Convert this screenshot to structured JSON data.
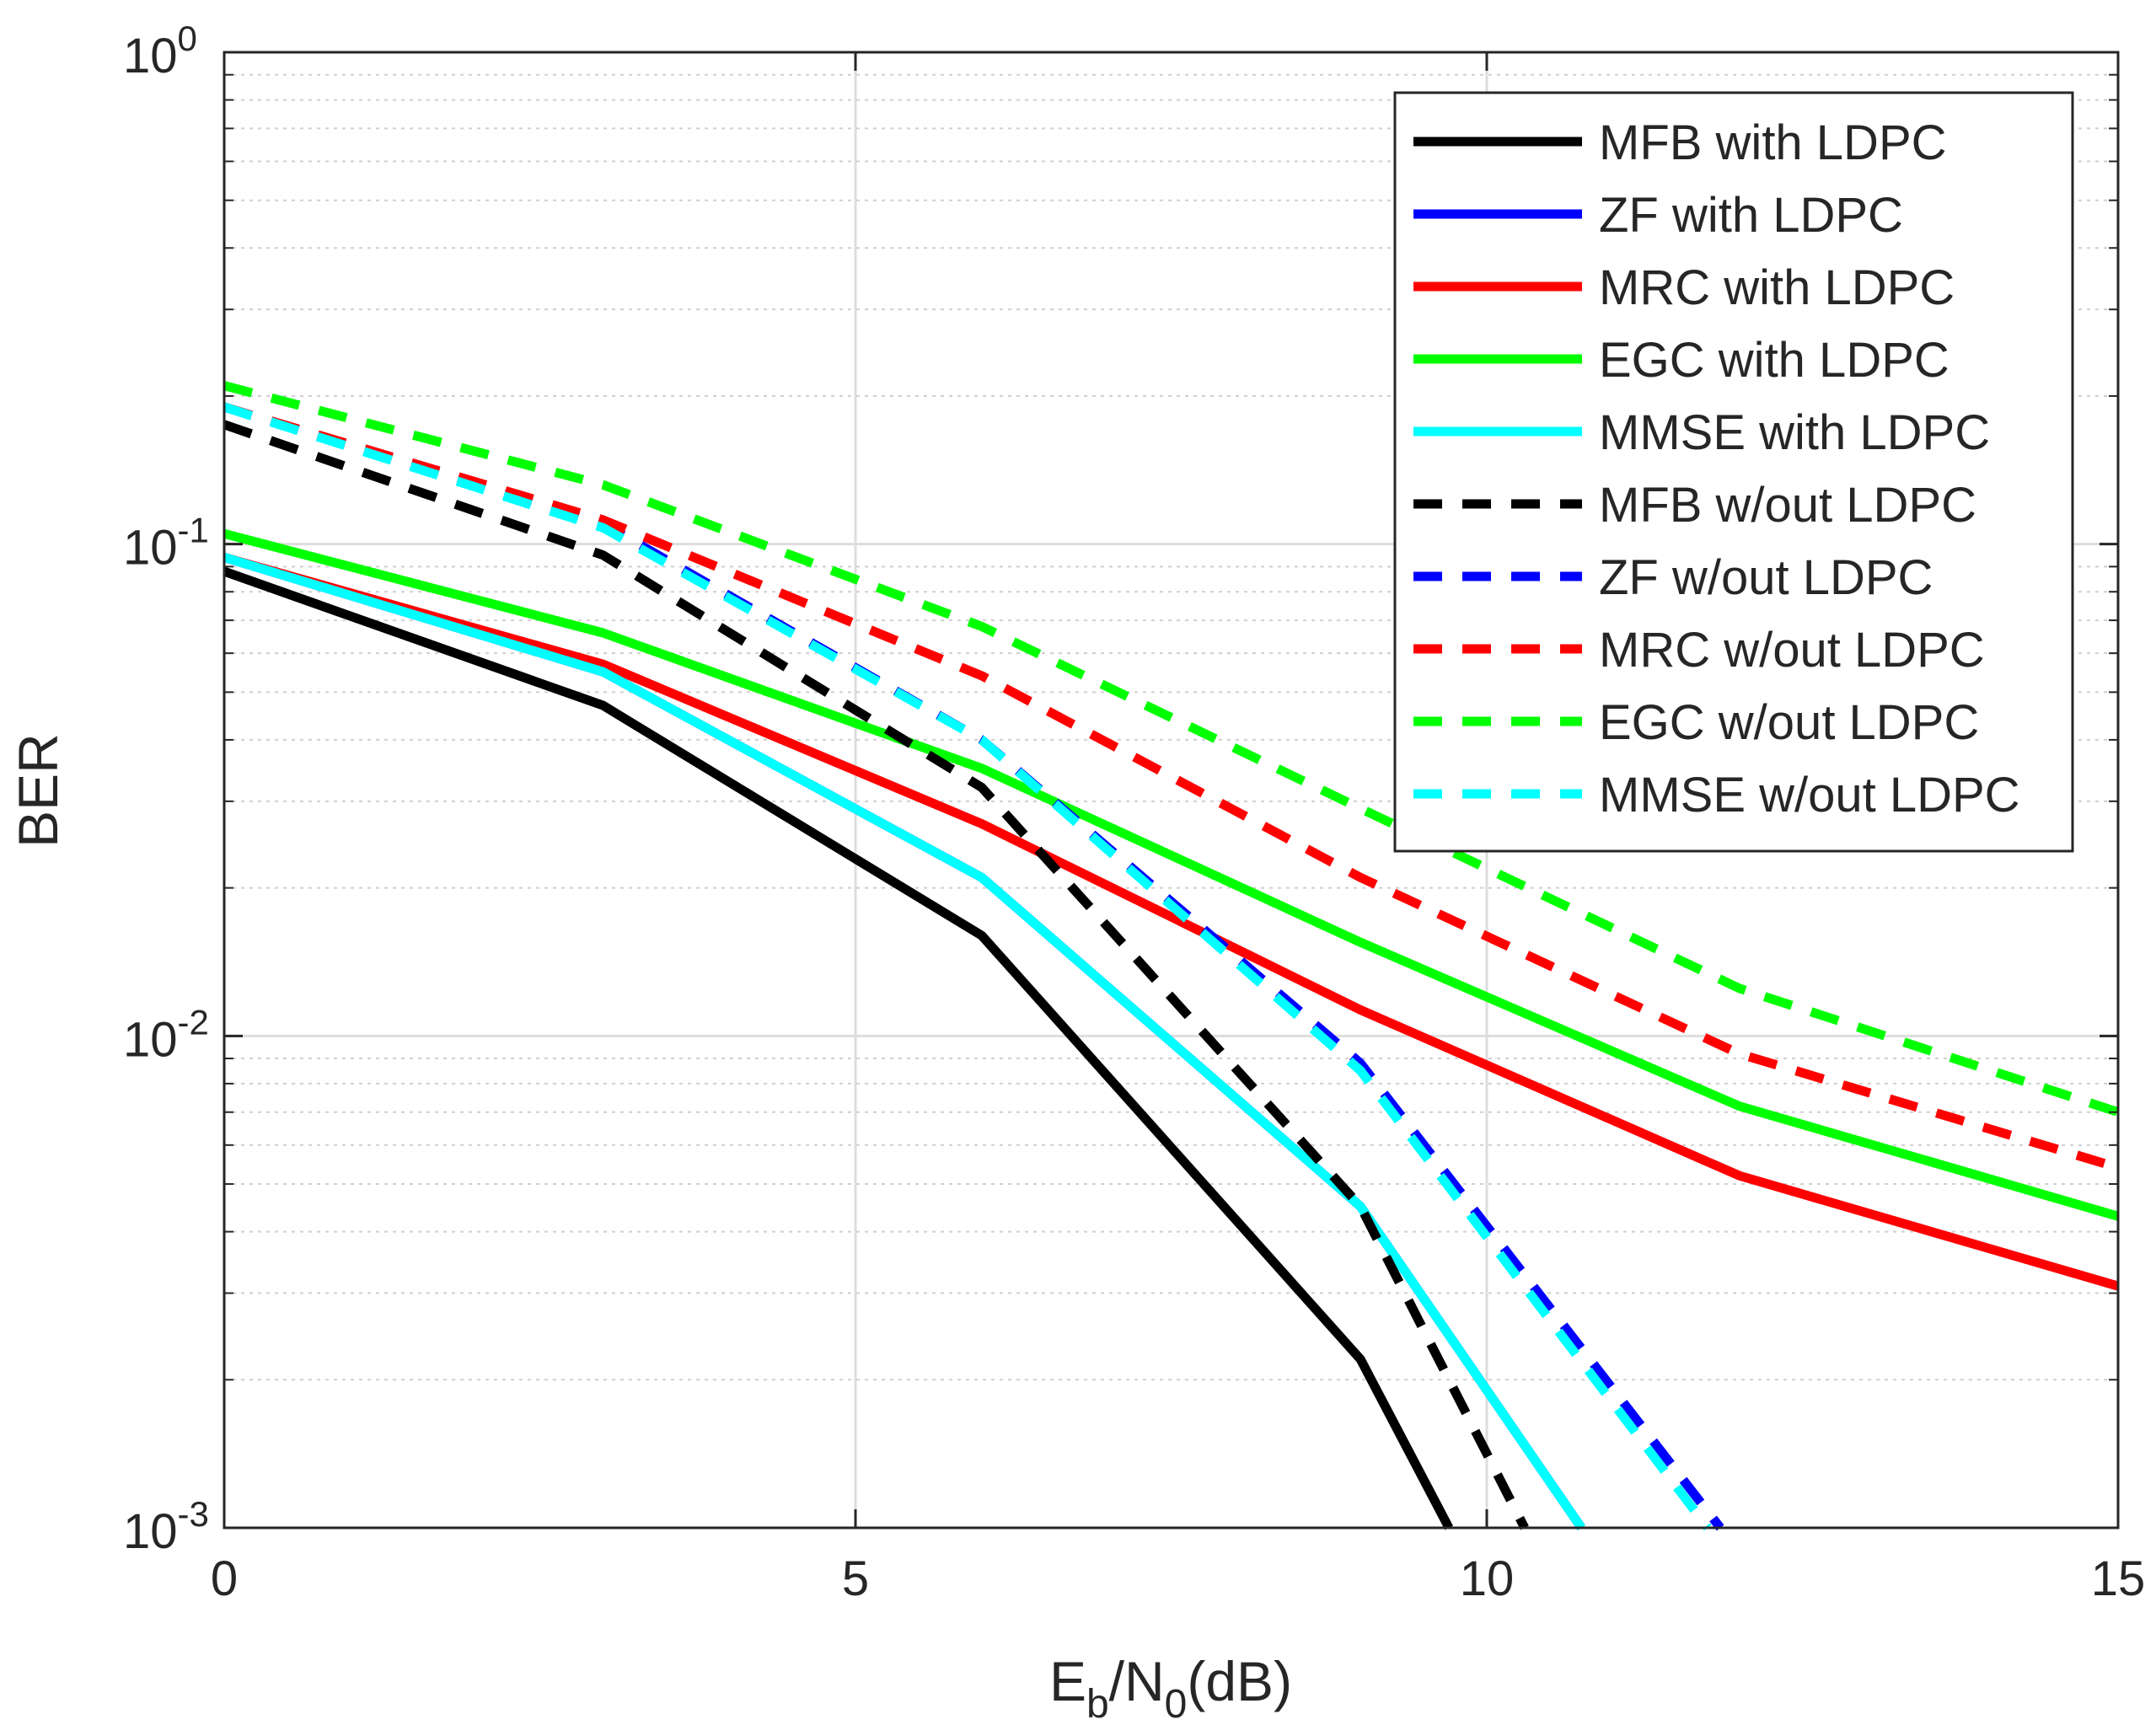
{
  "chart_data": {
    "type": "line",
    "title": "",
    "xlabel": {
      "main": "E",
      "sub1": "b",
      "mid": "/N",
      "sub2": "0",
      "tail": "(dB)"
    },
    "ylabel": "BER",
    "xlim": [
      0,
      15
    ],
    "ylim": [
      0.001,
      1
    ],
    "yscale": "log",
    "grid": true,
    "legend_position": "top-right",
    "x_ticks": [
      {
        "value": 0,
        "label": "0"
      },
      {
        "value": 5,
        "label": "5"
      },
      {
        "value": 10,
        "label": "10"
      },
      {
        "value": 15,
        "label": "15"
      }
    ],
    "y_ticks": [
      {
        "exp": 0,
        "base": "10",
        "sup": "0"
      },
      {
        "exp": -1,
        "base": "10",
        "sup": "-1"
      },
      {
        "exp": -2,
        "base": "10",
        "sup": "-2"
      },
      {
        "exp": -3,
        "base": "10",
        "sup": "-3"
      }
    ],
    "series": [
      {
        "name": "MFB with LDPC",
        "color": "#000000",
        "dashed": false,
        "x": [
          0,
          3,
          6,
          9,
          9.7
        ],
        "y": [
          0.088,
          0.047,
          0.016,
          0.0022,
          0.001
        ]
      },
      {
        "name": "ZF with LDPC",
        "color": "#0000ff",
        "dashed": false,
        "x": [
          0,
          3,
          6,
          9,
          10.75
        ],
        "y": [
          0.094,
          0.055,
          0.021,
          0.0045,
          0.001
        ]
      },
      {
        "name": "MRC with LDPC",
        "color": "#ff0000",
        "dashed": false,
        "x": [
          0,
          3,
          6,
          9,
          12,
          15
        ],
        "y": [
          0.094,
          0.057,
          0.027,
          0.0113,
          0.0052,
          0.0031
        ]
      },
      {
        "name": "EGC with LDPC",
        "color": "#00ff00",
        "dashed": false,
        "x": [
          0,
          3,
          6,
          9,
          12,
          15
        ],
        "y": [
          0.105,
          0.066,
          0.035,
          0.0155,
          0.0072,
          0.0043
        ]
      },
      {
        "name": "MMSE with LDPC",
        "color": "#00ffff",
        "dashed": false,
        "x": [
          0,
          3,
          6,
          9,
          10.75
        ],
        "y": [
          0.094,
          0.055,
          0.021,
          0.0045,
          0.001
        ]
      },
      {
        "name": "MFB w/out LDPC",
        "color": "#000000",
        "dashed": true,
        "x": [
          0,
          3,
          6,
          9,
          10.3
        ],
        "y": [
          0.175,
          0.095,
          0.032,
          0.0045,
          0.001
        ]
      },
      {
        "name": "ZF w/out LDPC",
        "color": "#0000ff",
        "dashed": true,
        "x": [
          0,
          3,
          6,
          9,
          11.85
        ],
        "y": [
          0.19,
          0.11,
          0.04,
          0.0088,
          0.001
        ]
      },
      {
        "name": "MRC w/out LDPC",
        "color": "#ff0000",
        "dashed": true,
        "x": [
          0,
          3,
          6,
          9,
          12,
          15
        ],
        "y": [
          0.19,
          0.112,
          0.054,
          0.021,
          0.0092,
          0.0054
        ]
      },
      {
        "name": "EGC w/out LDPC",
        "color": "#00ff00",
        "dashed": true,
        "x": [
          0,
          3,
          6,
          9,
          12,
          15
        ],
        "y": [
          0.21,
          0.132,
          0.068,
          0.029,
          0.0125,
          0.007
        ]
      },
      {
        "name": "MMSE w/out LDPC",
        "color": "#00ffff",
        "dashed": true,
        "x": [
          0,
          3,
          6,
          9,
          11.75
        ],
        "y": [
          0.19,
          0.108,
          0.04,
          0.0085,
          0.001
        ]
      }
    ]
  }
}
